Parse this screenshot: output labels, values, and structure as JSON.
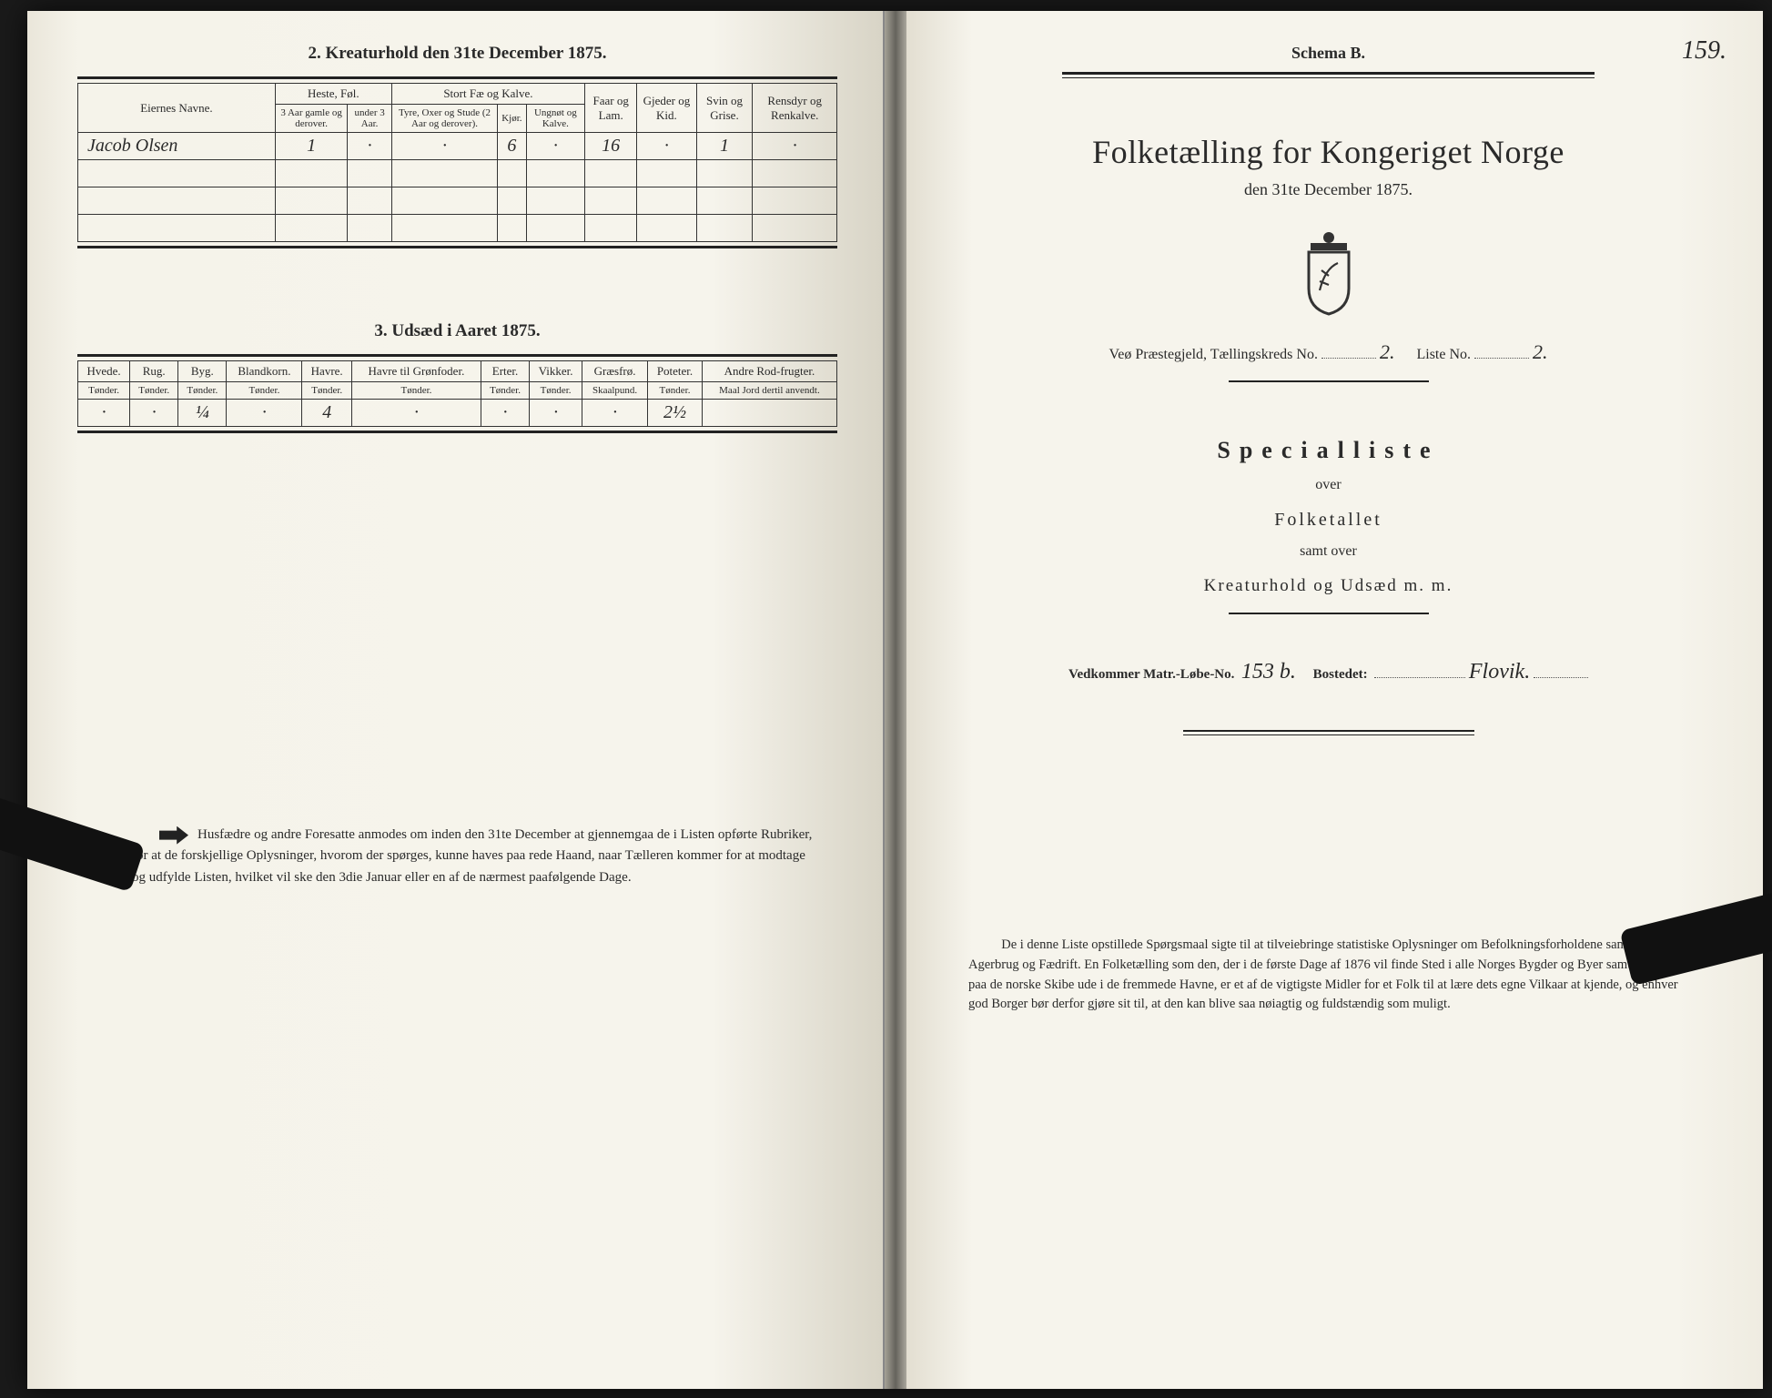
{
  "leftPage": {
    "section2_title": "2.  Kreaturhold den 31te December 1875.",
    "table2": {
      "headers": {
        "eier": "Eiernes Navne.",
        "heste": "Heste, Føl.",
        "heste_sub1": "3 Aar gamle og derover.",
        "heste_sub2": "under 3 Aar.",
        "stort": "Stort Fæ og Kalve.",
        "stort_sub1": "Tyre, Oxer og Stude (2 Aar og derover).",
        "stort_sub2": "Kjør.",
        "stort_sub3": "Ungnøt og Kalve.",
        "faar": "Faar og Lam.",
        "gjeder": "Gjeder og Kid.",
        "svin": "Svin og Grise.",
        "rensdyr": "Rensdyr og Renkalve."
      },
      "row": {
        "name": "Jacob Olsen",
        "heste1": "1",
        "heste2": "·",
        "stort1": "·",
        "stort2": "6",
        "stort3": "·",
        "faar": "16",
        "gjeder": "·",
        "svin": "1",
        "rensdyr": "·"
      }
    },
    "section3_title": "3.  Udsæd i Aaret 1875.",
    "table3": {
      "cols": [
        "Hvede.",
        "Rug.",
        "Byg.",
        "Blandkorn.",
        "Havre.",
        "Havre til Grønfoder.",
        "Erter.",
        "Vikker.",
        "Græsfrø.",
        "Poteter.",
        "Andre Rod-frugter."
      ],
      "units": [
        "Tønder.",
        "Tønder.",
        "Tønder.",
        "Tønder.",
        "Tønder.",
        "Tønder.",
        "Tønder.",
        "Tønder.",
        "Skaalpund.",
        "Tønder.",
        "Maal Jord dertil anvendt."
      ],
      "row": [
        "·",
        "·",
        "¼",
        "·",
        "4",
        "·",
        "·",
        "·",
        "·",
        "2½",
        ""
      ]
    },
    "footnote": "Husfædre og andre Foresatte anmodes om inden den 31te December at gjennemgaa de i Listen opførte Rubriker, for at de forskjellige Oplysninger, hvorom der spørges, kunne haves paa rede Haand, naar Tælleren kommer for at modtage og udfylde Listen, hvilket vil ske den 3die Januar eller en af de nærmest paafølgende Dage."
  },
  "rightPage": {
    "pageNumber": "159.",
    "schema": "Schema B.",
    "mainTitle": "Folketælling for Kongeriget Norge",
    "date": "den 31te December 1875.",
    "district_prefix": "Veø Præstegjeld,  Tællingskreds No.",
    "district_no": "2.",
    "liste_label": "Liste No.",
    "liste_no": "2.",
    "specialliste": "Specialliste",
    "over": "over",
    "folketallet": "Folketallet",
    "samt_over": "samt over",
    "kreaturhold": "Kreaturhold  og  Udsæd  m.  m.",
    "matr_label": "Vedkommer Matr.-Løbe-No.",
    "matr_no": "153 b.",
    "bostedet_label": "Bostedet:",
    "bostedet": "Flovik.",
    "footnote": "De i denne Liste opstillede Spørgsmaal sigte til at tilveiebringe statistiske Oplysninger om Befolkningsforholdene samt om Agerbrug og Fædrift.  En Folketælling som den, der i de første Dage af 1876 vil finde Sted i alle Norges Bygder og Byer samt ombord paa de norske Skibe ude i de fremmede Havne, er et af de vigtigste Midler for et Folk til at lære dets egne Vilkaar at kjende, og enhver god Borger bør derfor gjøre sit til, at den kan blive saa nøiagtig og fuldstændig som muligt."
  },
  "colors": {
    "paper": "#f6f4ec",
    "ink": "#222222",
    "faint": "#555555"
  }
}
